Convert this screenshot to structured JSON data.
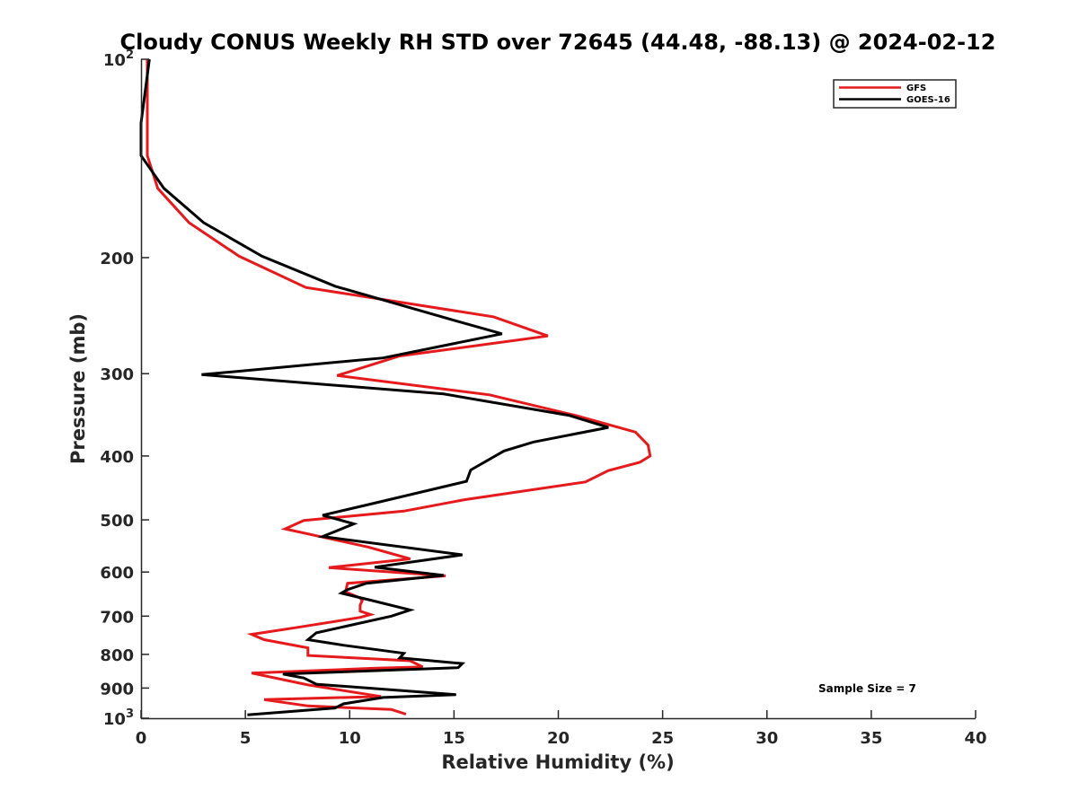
{
  "chart_data": {
    "type": "line",
    "title": "Cloudy CONUS Weekly RH STD over 72645 (44.48, -88.13) @ 2024-02-12",
    "xlabel": "Relative Humidity (%)",
    "ylabel": "Pressure (mb)",
    "xlim": [
      0,
      40
    ],
    "ylim": [
      100,
      1000
    ],
    "y_scale": "log",
    "y_reversed": true,
    "x_ticks": [
      "0",
      "5",
      "10",
      "15",
      "20",
      "25",
      "30",
      "35",
      "40"
    ],
    "y_ticks": [
      {
        "value": 100,
        "label": "10",
        "sup": "2"
      },
      {
        "value": 200,
        "label": "200",
        "sup": ""
      },
      {
        "value": 300,
        "label": "300",
        "sup": ""
      },
      {
        "value": 400,
        "label": "400",
        "sup": ""
      },
      {
        "value": 500,
        "label": "500",
        "sup": ""
      },
      {
        "value": 600,
        "label": "600",
        "sup": ""
      },
      {
        "value": 700,
        "label": "700",
        "sup": ""
      },
      {
        "value": 800,
        "label": "800",
        "sup": ""
      },
      {
        "value": 900,
        "label": "900",
        "sup": ""
      },
      {
        "value": 1000,
        "label": "10",
        "sup": "3"
      }
    ],
    "grid": false,
    "legend_position": "top-right",
    "annotation": "Sample Size = 7",
    "series": [
      {
        "name": "GFS",
        "color": "#e41a1c",
        "points": [
          [
            0.3,
            100
          ],
          [
            0.3,
            125
          ],
          [
            0.3,
            140
          ],
          [
            0.8,
            157
          ],
          [
            2.3,
            177
          ],
          [
            4.7,
            199
          ],
          [
            7.9,
            222
          ],
          [
            16.9,
            246
          ],
          [
            19.5,
            263
          ],
          [
            12.4,
            282
          ],
          [
            9.4,
            302
          ],
          [
            16.7,
            323
          ],
          [
            20.8,
            347
          ],
          [
            23.7,
            368
          ],
          [
            24.3,
            385
          ],
          [
            24.4,
            400
          ],
          [
            23.9,
            409
          ],
          [
            22.4,
            421
          ],
          [
            21.3,
            438
          ],
          [
            15.5,
            466
          ],
          [
            12.6,
            485
          ],
          [
            7.8,
            501
          ],
          [
            6.9,
            516
          ],
          [
            10.9,
            550
          ],
          [
            12.9,
            573
          ],
          [
            9.0,
            591
          ],
          [
            14.6,
            608
          ],
          [
            9.9,
            624
          ],
          [
            9.8,
            643
          ],
          [
            10.5,
            657
          ],
          [
            10.6,
            663
          ],
          [
            10.5,
            674
          ],
          [
            10.5,
            688
          ],
          [
            11.0,
            696
          ],
          [
            10.5,
            703
          ],
          [
            7.5,
            728
          ],
          [
            5.3,
            746
          ],
          [
            5.9,
            760
          ],
          [
            8.0,
            782
          ],
          [
            8.0,
            803
          ],
          [
            12.9,
            818
          ],
          [
            13.5,
            836
          ],
          [
            11.1,
            840
          ],
          [
            5.3,
            854
          ],
          [
            8.0,
            890
          ],
          [
            11.5,
            927
          ],
          [
            5.9,
            937
          ],
          [
            8.0,
            958
          ],
          [
            12.0,
            970
          ],
          [
            12.7,
            986
          ]
        ]
      },
      {
        "name": "GOES-16",
        "color": "#000000",
        "points": [
          [
            0.4,
            100
          ],
          [
            0.0,
            125
          ],
          [
            0.0,
            140
          ],
          [
            1.1,
            157
          ],
          [
            3.0,
            177
          ],
          [
            5.8,
            199
          ],
          [
            9.3,
            221
          ],
          [
            15.2,
            250
          ],
          [
            17.3,
            261
          ],
          [
            11.6,
            284
          ],
          [
            2.9,
            301
          ],
          [
            14.5,
            322
          ],
          [
            20.5,
            347
          ],
          [
            22.4,
            362
          ],
          [
            18.8,
            381
          ],
          [
            17.4,
            393
          ],
          [
            15.8,
            420
          ],
          [
            15.6,
            437
          ],
          [
            10.9,
            474
          ],
          [
            8.7,
            492
          ],
          [
            10.2,
            507
          ],
          [
            8.7,
            530
          ],
          [
            15.4,
            565
          ],
          [
            11.2,
            590
          ],
          [
            14.5,
            607
          ],
          [
            10.8,
            624
          ],
          [
            9.9,
            638
          ],
          [
            9.6,
            646
          ],
          [
            11.0,
            662
          ],
          [
            12.9,
            685
          ],
          [
            12.0,
            700
          ],
          [
            8.4,
            742
          ],
          [
            8.0,
            760
          ],
          [
            9.7,
            775
          ],
          [
            12.6,
            797
          ],
          [
            12.4,
            810
          ],
          [
            15.4,
            826
          ],
          [
            15.2,
            838
          ],
          [
            6.8,
            857
          ],
          [
            7.8,
            869
          ],
          [
            8.4,
            888
          ],
          [
            15.1,
            921
          ],
          [
            11.6,
            930
          ],
          [
            9.7,
            951
          ],
          [
            9.3,
            965
          ],
          [
            5.1,
            988
          ]
        ]
      }
    ]
  }
}
